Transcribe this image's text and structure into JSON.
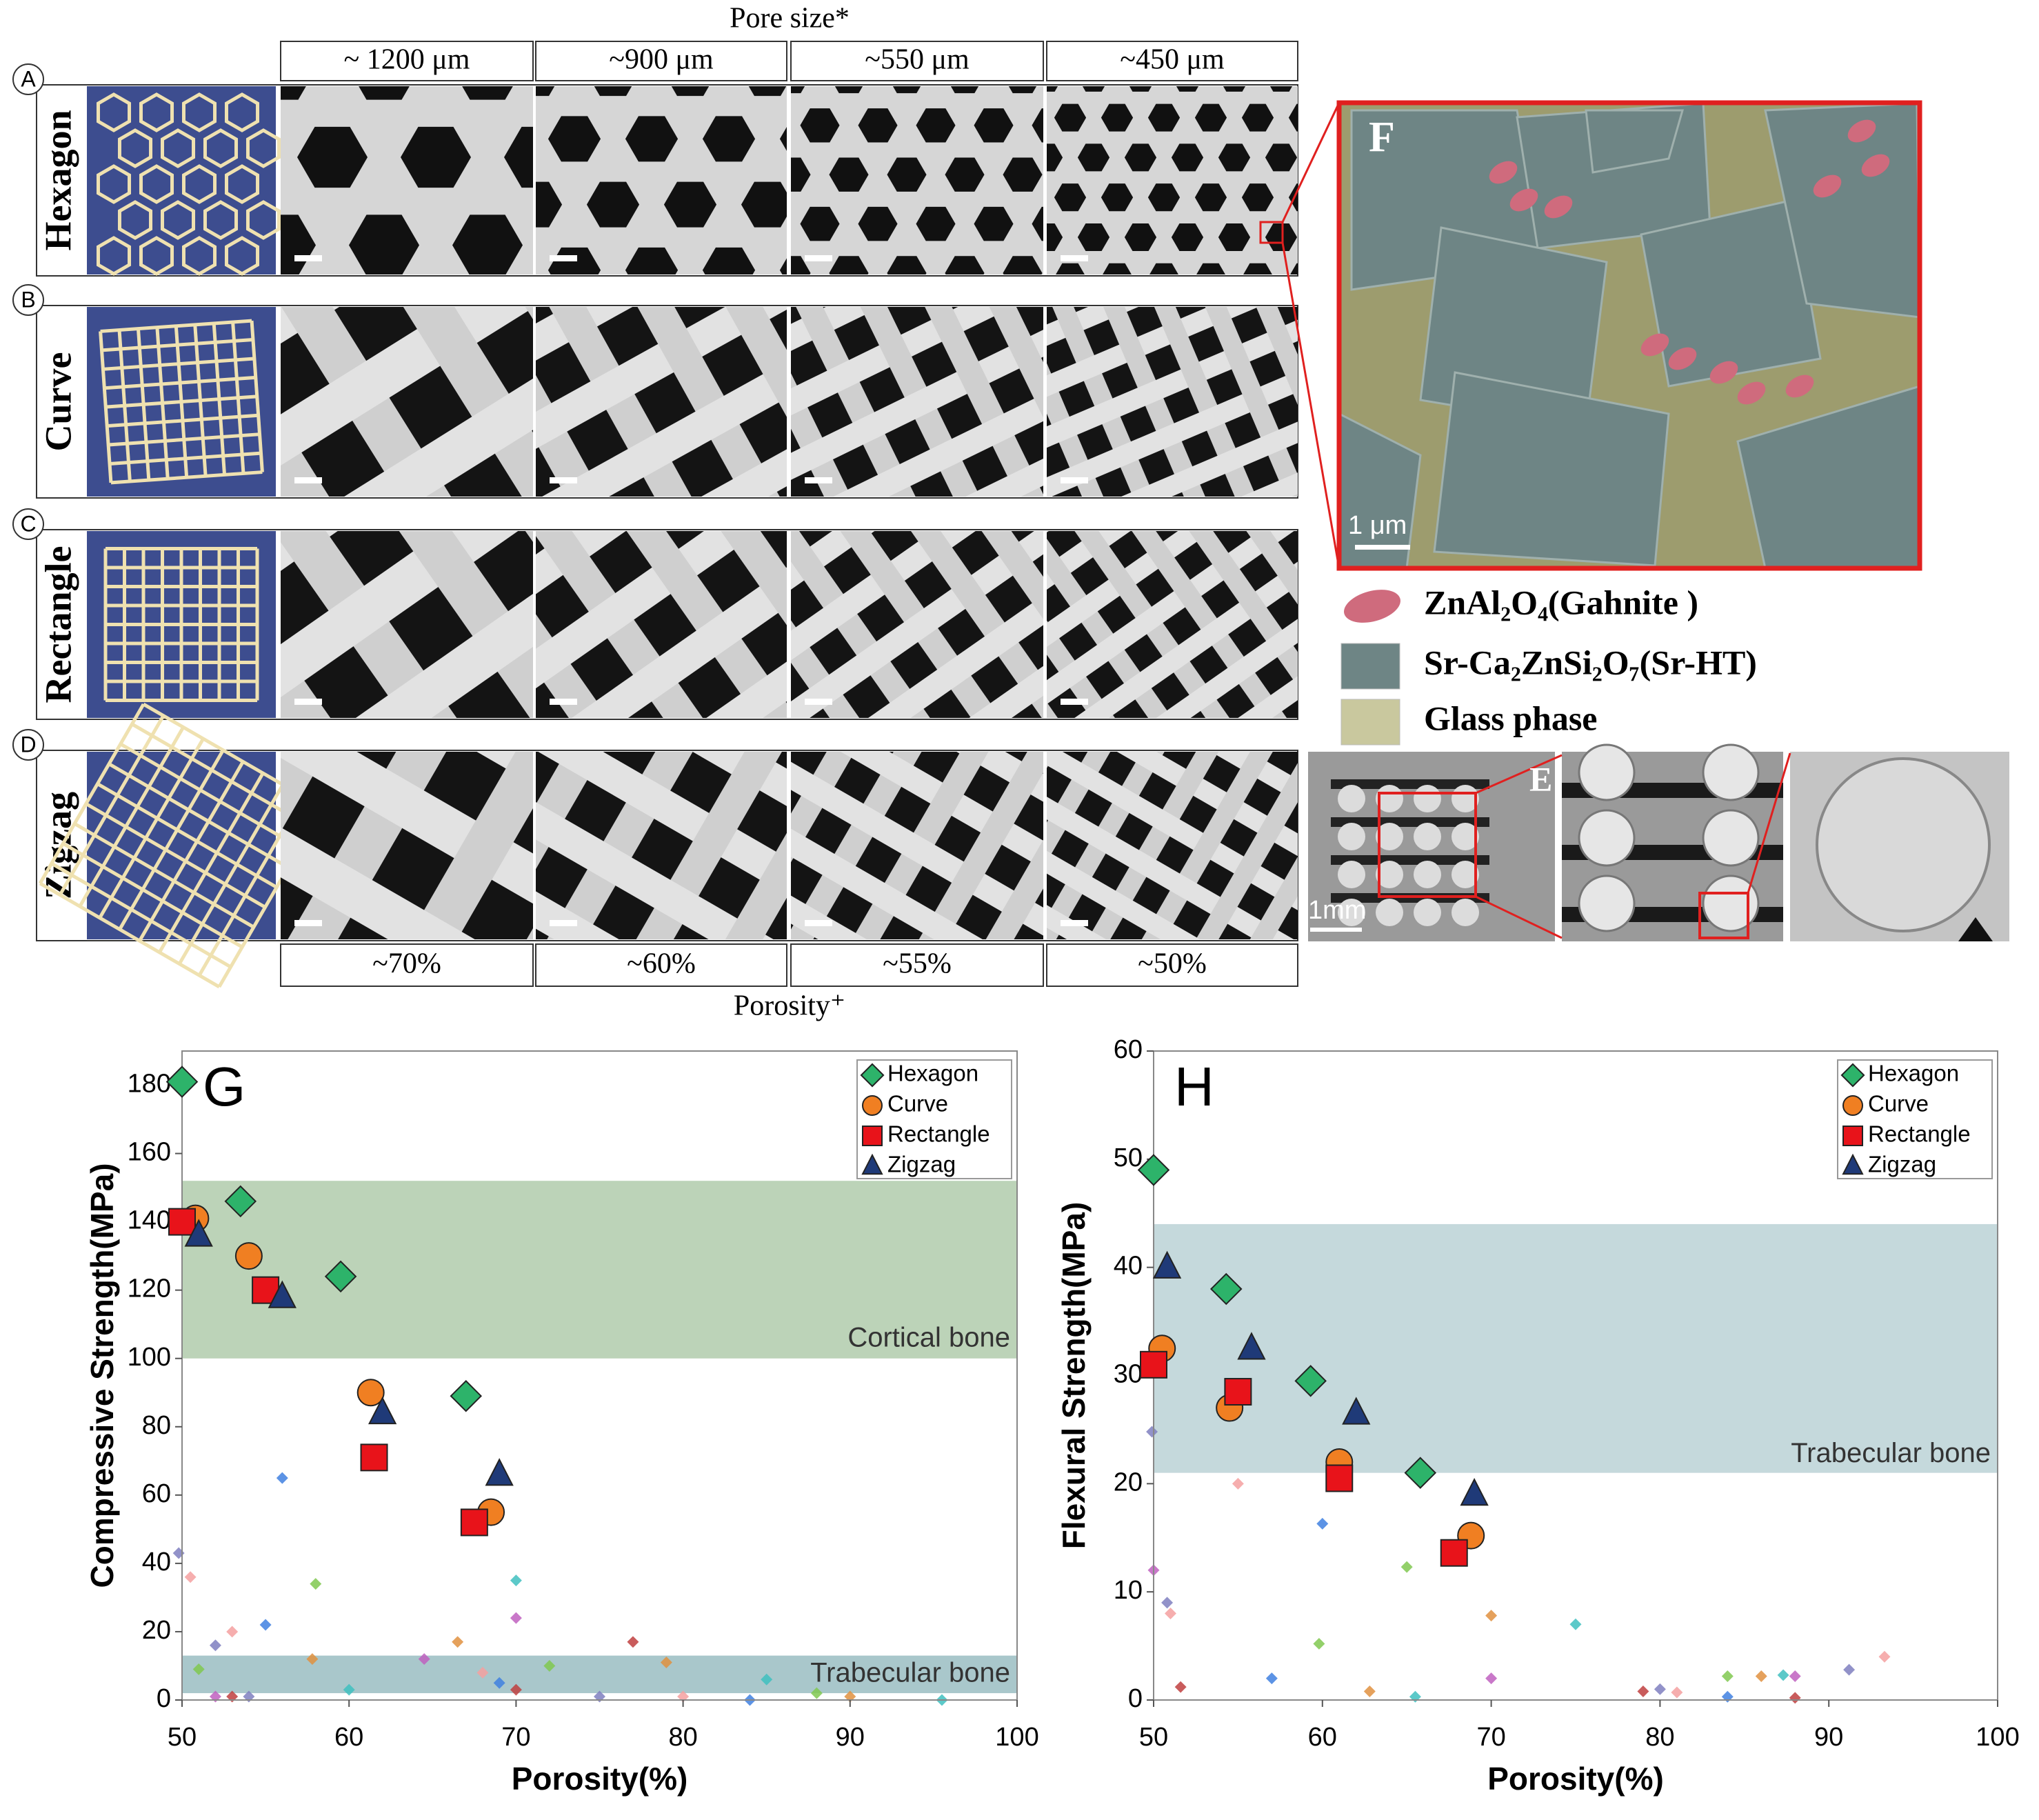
{
  "header": {
    "title": "Pore size*",
    "pore_sizes": [
      "~ 1200 μm",
      "~900 μm",
      "~550 μm",
      "~450 μm"
    ]
  },
  "rows": [
    {
      "letter": "A",
      "name": "Hexagon"
    },
    {
      "letter": "B",
      "name": "Curve"
    },
    {
      "letter": "C",
      "name": "Rectangle"
    },
    {
      "letter": "D",
      "name": "Zigzag"
    }
  ],
  "footer": {
    "porosities": [
      "~70%",
      "~60%",
      "~55%",
      "~50%"
    ],
    "title": "Porosity⁺"
  },
  "panel_f": {
    "label": "F",
    "scale_bar": "1 μm",
    "legend": [
      "ZnAl₂O₄(Gahnite )",
      "Sr-Ca₂ZnSi₂O₇(Sr-HT)",
      "Glass phase"
    ]
  },
  "panel_e": {
    "label": "E",
    "scale_bar": "1mm"
  },
  "chart_data": [
    {
      "type": "scatter",
      "panel_label": "G",
      "xlabel": "Porosity(%)",
      "ylabel": "Compressive Strength(MPa)",
      "xlim": [
        50,
        100
      ],
      "ylim": [
        0,
        190
      ],
      "xticks": [
        50,
        60,
        70,
        80,
        90,
        100
      ],
      "yticks": [
        0,
        20,
        40,
        60,
        80,
        100,
        120,
        140,
        160,
        180
      ],
      "legend": "upper right",
      "bands": [
        {
          "label": "Cortical bone",
          "range": [
            100,
            152
          ],
          "color": "#bcd3b8"
        },
        {
          "label": "Trabecular bone",
          "range": [
            2,
            13
          ],
          "color": "#a9c7cb"
        }
      ],
      "series": [
        {
          "name": "Hexagon",
          "color": "#2db36a",
          "marker": "diamond",
          "x": [
            50,
            53.5,
            59.5,
            67
          ],
          "y": [
            181,
            146,
            124,
            89
          ]
        },
        {
          "name": "Curve",
          "color": "#f07f22",
          "marker": "circle",
          "x": [
            50.8,
            54,
            61.3,
            68.5
          ],
          "y": [
            141,
            130,
            90,
            55
          ]
        },
        {
          "name": "Rectangle",
          "color": "#e8131a",
          "marker": "square",
          "x": [
            50,
            55,
            61.5,
            67.5
          ],
          "y": [
            140,
            120,
            71,
            52
          ]
        },
        {
          "name": "Zigzag",
          "color": "#1f3a78",
          "marker": "triangle",
          "x": [
            51,
            56,
            62,
            69
          ],
          "y": [
            136,
            118,
            84,
            66
          ]
        }
      ],
      "background_points": {
        "x": [
          49.8,
          50.5,
          56,
          58,
          66.5,
          70,
          70,
          77,
          52,
          53,
          55,
          51,
          57.8,
          60,
          64.5,
          70,
          75,
          80,
          84,
          88,
          90,
          95.5,
          52,
          53,
          54,
          68,
          69,
          72,
          79,
          85
        ],
        "y": [
          43,
          36,
          65,
          34,
          17,
          35,
          24,
          17,
          16,
          20,
          22,
          9,
          12,
          3,
          12,
          3,
          1,
          1,
          0,
          2,
          1,
          0,
          1,
          1,
          1,
          8,
          5,
          10,
          11,
          6
        ]
      }
    },
    {
      "type": "scatter",
      "panel_label": "H",
      "xlabel": "Porosity(%)",
      "ylabel": "Flexural  Strength(MPa)",
      "xlim": [
        50,
        100
      ],
      "ylim": [
        0,
        60
      ],
      "xticks": [
        50,
        60,
        70,
        80,
        90,
        100
      ],
      "yticks": [
        0,
        10,
        20,
        30,
        40,
        50,
        60
      ],
      "legend": "upper right",
      "bands": [
        {
          "label": "Trabecular bone",
          "range": [
            21,
            44
          ],
          "color": "#c5d9dc"
        }
      ],
      "series": [
        {
          "name": "Hexagon",
          "color": "#2db36a",
          "marker": "diamond",
          "x": [
            50,
            54.3,
            59.3,
            65.8
          ],
          "y": [
            49,
            38,
            29.5,
            21
          ]
        },
        {
          "name": "Curve",
          "color": "#f07f22",
          "marker": "circle",
          "x": [
            50.5,
            54.5,
            61,
            68.8
          ],
          "y": [
            32.5,
            27,
            22,
            15.2
          ]
        },
        {
          "name": "Rectangle",
          "color": "#e8131a",
          "marker": "square",
          "x": [
            50,
            55,
            61,
            67.8
          ],
          "y": [
            31,
            28.5,
            20.5,
            13.6
          ]
        },
        {
          "name": "Zigzag",
          "color": "#1f3a78",
          "marker": "triangle",
          "x": [
            50.8,
            55.8,
            62,
            69
          ],
          "y": [
            40,
            32.5,
            26.5,
            19
          ]
        }
      ],
      "background_points": {
        "x": [
          49.9,
          55,
          60,
          65,
          70,
          75,
          50,
          51.6,
          50.8,
          51,
          57,
          59.8,
          62.8,
          65.5,
          70,
          79,
          80,
          81,
          84,
          84,
          86,
          87.3,
          88,
          88,
          91.2,
          93.3
        ],
        "y": [
          24.8,
          20,
          16.3,
          12.3,
          7.8,
          7,
          12,
          1.2,
          9,
          8,
          2,
          5.2,
          0.8,
          0.3,
          2,
          0.8,
          1,
          0.7,
          0.3,
          2.2,
          2.2,
          2.3,
          2.2,
          0.2,
          2.8,
          4
        ]
      }
    }
  ]
}
